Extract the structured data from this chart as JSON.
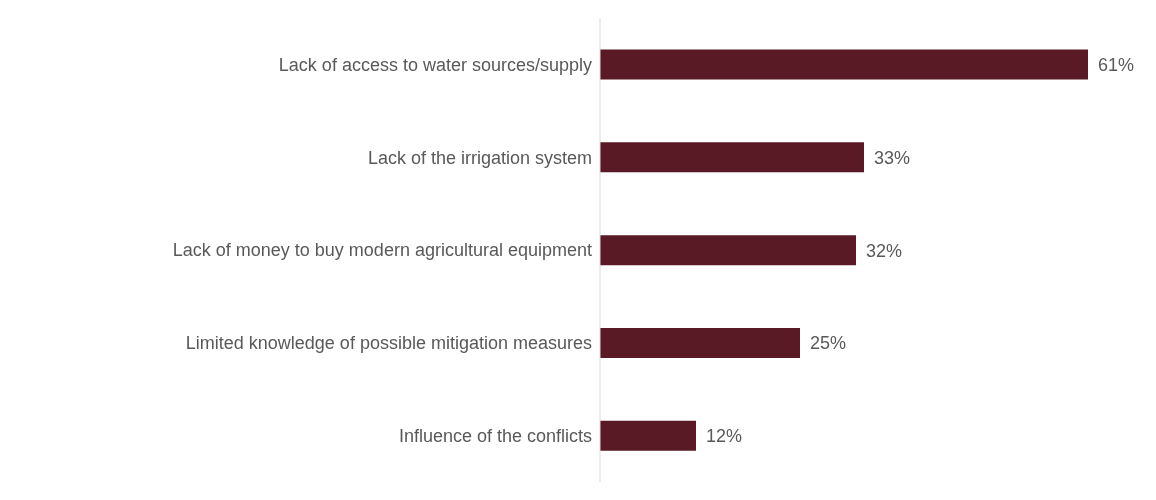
{
  "chart_data": {
    "type": "bar",
    "orientation": "horizontal",
    "categories": [
      "Lack of access to water sources/supply",
      "Lack of the irrigation system",
      "Lack of money to buy modern agricultural equipment",
      "Limited knowledge of possible mitigation measures",
      "Influence of the conflicts"
    ],
    "values": [
      61,
      33,
      32,
      25,
      12
    ],
    "value_labels": [
      "61%",
      "33%",
      "32%",
      "25%",
      "12%"
    ],
    "color": "#5a1a25",
    "grid": false,
    "legend": false
  }
}
